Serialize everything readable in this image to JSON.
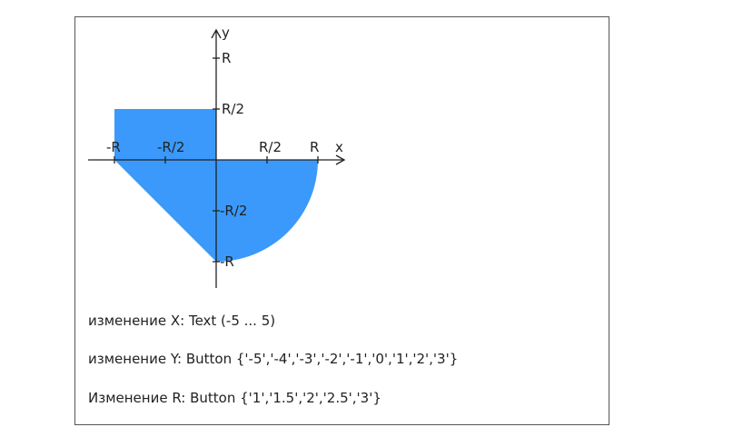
{
  "diagram": {
    "fill_color": "#3a99fb",
    "axis_color": "#222222",
    "axis_labels": {
      "x": "x",
      "y": "y"
    },
    "tick_labels": {
      "x_neg_r": "-R",
      "x_neg_half": "-R/2",
      "x_pos_half": "R/2",
      "x_pos_r": "R",
      "y_pos_r": "R",
      "y_pos_half": "R/2",
      "y_neg_half": "-R/2",
      "y_neg_r": "-R"
    }
  },
  "descriptions": {
    "x_change": "изменение X: Text (-5 ... 5)",
    "y_change": "изменение Y: Button {'-5','-4','-3','-2','-1','0','1','2','3'}",
    "r_change": "Изменение R: Button {'1','1.5','2','2.5','3'}"
  }
}
